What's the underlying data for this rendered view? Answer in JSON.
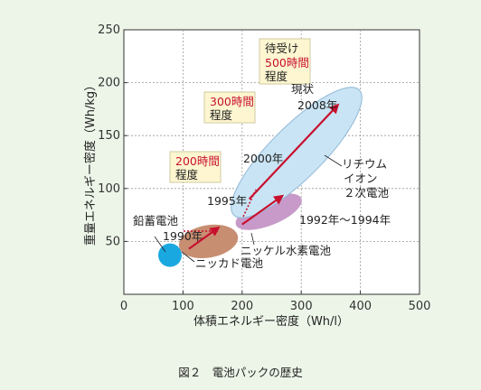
{
  "chart_data": {
    "type": "scatter",
    "title": "",
    "xlabel": "体積エネルギー密度（Wh/l）",
    "ylabel": "重量エネルギー密度（Wh/kg）",
    "xlim": [
      0,
      500
    ],
    "ylim": [
      0,
      250
    ],
    "x_ticks": [
      "0",
      "100",
      "200",
      "300",
      "400",
      "500"
    ],
    "y_ticks": [
      "50",
      "100",
      "150",
      "200",
      "250"
    ],
    "grid": true,
    "caption": "図２　電池パックの歴史",
    "regions": [
      {
        "name": "鉛蓄電池",
        "cx": 78,
        "cy": 37,
        "color": "#1aa8e0"
      },
      {
        "name": "ニッカド電池",
        "cx": 143,
        "cy": 50,
        "color": "#c78e72"
      },
      {
        "name": "ニッケル水素電池",
        "cx": 245,
        "cy": 78,
        "color": "#c79ac9"
      },
      {
        "name": "リチウムイオン２次電池",
        "cx": 292,
        "cy": 134,
        "color": "#c9e4f4"
      }
    ],
    "trend_arrows": [
      {
        "from": [
          110,
          43
        ],
        "to": [
          160,
          63
        ]
      },
      {
        "from": [
          200,
          66
        ],
        "to": [
          268,
          93
        ]
      },
      {
        "from": [
          212,
          90
        ],
        "to": [
          362,
          179
        ]
      }
    ],
    "labels": {
      "lead": "鉛蓄電池",
      "nicd": "ニッカド電池",
      "nimh": "ニッケル水素電池",
      "li_line1": "リチウム",
      "li_line2": "イオン",
      "li_line3": "２次電池",
      "y1990": "1990年",
      "y1995": "1995年",
      "y2000": "2000年",
      "y2008": "2008年",
      "y1992_1994": "1992年～1994年",
      "current": "現状"
    },
    "boxes": [
      {
        "line1": "200時間",
        "line2": "程度"
      },
      {
        "line1": "300時間",
        "line2": "程度"
      },
      {
        "line0": "待受け",
        "line1": "500時間",
        "line2": "程度"
      }
    ],
    "colors": {
      "arrow": "#c8102e",
      "box_fill": "#fdf6d0",
      "box_text": "#c8102e"
    }
  }
}
